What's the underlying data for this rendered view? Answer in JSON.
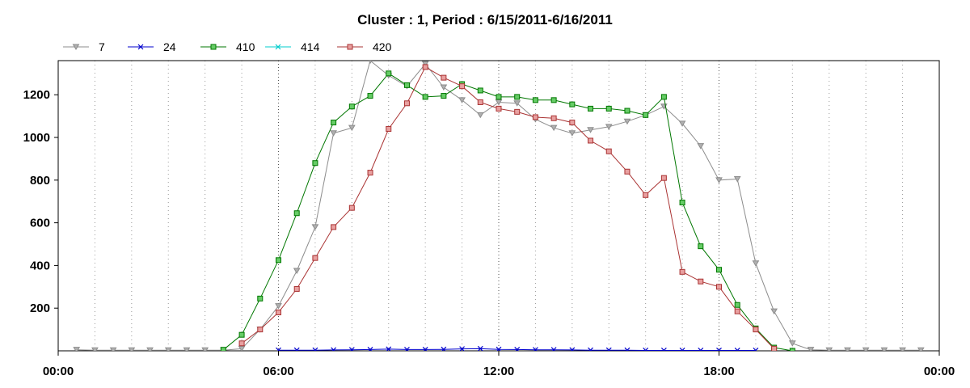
{
  "chart_data": {
    "type": "line",
    "title": "Cluster : 1, Period : 6/15/2011-6/16/2011",
    "xlabel": "",
    "ylabel": "",
    "x_ticks": [
      "00:00",
      "06:00",
      "12:00",
      "18:00",
      "00:00"
    ],
    "y_ticks": [
      200,
      400,
      600,
      800,
      1000,
      1200
    ],
    "xlim_hours": [
      0,
      24
    ],
    "ylim": [
      0,
      1360
    ],
    "grid": "vertical-dotted",
    "legend_position": "top-left",
    "series": [
      {
        "name": "7",
        "color": "#8c8c8c",
        "marker": "triangle-down",
        "x": [
          0.5,
          1,
          1.5,
          2,
          2.5,
          3,
          3.5,
          4,
          4.5,
          5,
          5.5,
          6,
          6.5,
          7,
          7.5,
          8,
          8.5,
          9,
          9.5,
          10,
          10.5,
          11,
          11.5,
          12,
          12.5,
          13,
          13.5,
          14,
          14.5,
          15,
          15.5,
          16,
          16.5,
          17,
          17.5,
          18,
          18.5,
          19,
          19.5,
          20,
          20.5,
          21,
          21.5,
          22,
          22.5,
          23,
          23.5
        ],
        "y": [
          5,
          3,
          3,
          3,
          3,
          3,
          3,
          3,
          3,
          10,
          100,
          210,
          375,
          580,
          1020,
          1045,
          1360,
          1290,
          1240,
          1345,
          1235,
          1175,
          1105,
          1165,
          1160,
          1085,
          1045,
          1020,
          1035,
          1050,
          1075,
          1105,
          1145,
          1065,
          960,
          800,
          805,
          410,
          185,
          35,
          5,
          3,
          3,
          3,
          3,
          3,
          3
        ]
      },
      {
        "name": "24",
        "color": "#0000cc",
        "marker": "x",
        "x": [
          6,
          6.5,
          7,
          7.5,
          8,
          8.5,
          9,
          9.5,
          10,
          10.5,
          11,
          11.5,
          12,
          12.5,
          13,
          13.5,
          14,
          14.5,
          15,
          15.5,
          16,
          16.5,
          17,
          17.5,
          18,
          18.5,
          19
        ],
        "y": [
          3,
          3,
          3,
          4,
          5,
          6,
          8,
          6,
          6,
          7,
          9,
          10,
          7,
          6,
          5,
          5,
          4,
          3,
          3,
          3,
          2,
          2,
          2,
          2,
          2,
          2,
          2
        ]
      },
      {
        "name": "410",
        "color": "#007700",
        "fill": "#66cc66",
        "marker": "square",
        "x": [
          4.5,
          5,
          5.5,
          6,
          6.5,
          7,
          7.5,
          8,
          8.5,
          9,
          9.5,
          10,
          10.5,
          11,
          11.5,
          12,
          12.5,
          13,
          13.5,
          14,
          14.5,
          15,
          15.5,
          16,
          16.5,
          17,
          17.5,
          18,
          18.5,
          19,
          19.5,
          20
        ],
        "y": [
          5,
          75,
          245,
          425,
          645,
          880,
          1070,
          1145,
          1195,
          1300,
          1245,
          1190,
          1195,
          1250,
          1220,
          1190,
          1190,
          1175,
          1175,
          1155,
          1135,
          1135,
          1125,
          1105,
          1190,
          695,
          490,
          380,
          215,
          105,
          15,
          0
        ]
      },
      {
        "name": "414",
        "color": "#00cccc",
        "marker": "x",
        "x": [],
        "y": []
      },
      {
        "name": "420",
        "color": "#aa3333",
        "fill": "#e8a0a0",
        "marker": "square",
        "x": [
          5,
          5.5,
          6,
          6.5,
          7,
          7.5,
          8,
          8.5,
          9,
          9.5,
          10,
          10.5,
          11,
          11.5,
          12,
          12.5,
          13,
          13.5,
          14,
          14.5,
          15,
          15.5,
          16,
          16.5,
          17,
          17.5,
          18,
          18.5,
          19,
          19.5
        ],
        "y": [
          35,
          100,
          180,
          290,
          435,
          580,
          670,
          835,
          1040,
          1160,
          1330,
          1280,
          1240,
          1165,
          1135,
          1120,
          1095,
          1090,
          1070,
          985,
          935,
          840,
          730,
          810,
          370,
          325,
          300,
          185,
          100,
          10
        ]
      }
    ]
  }
}
